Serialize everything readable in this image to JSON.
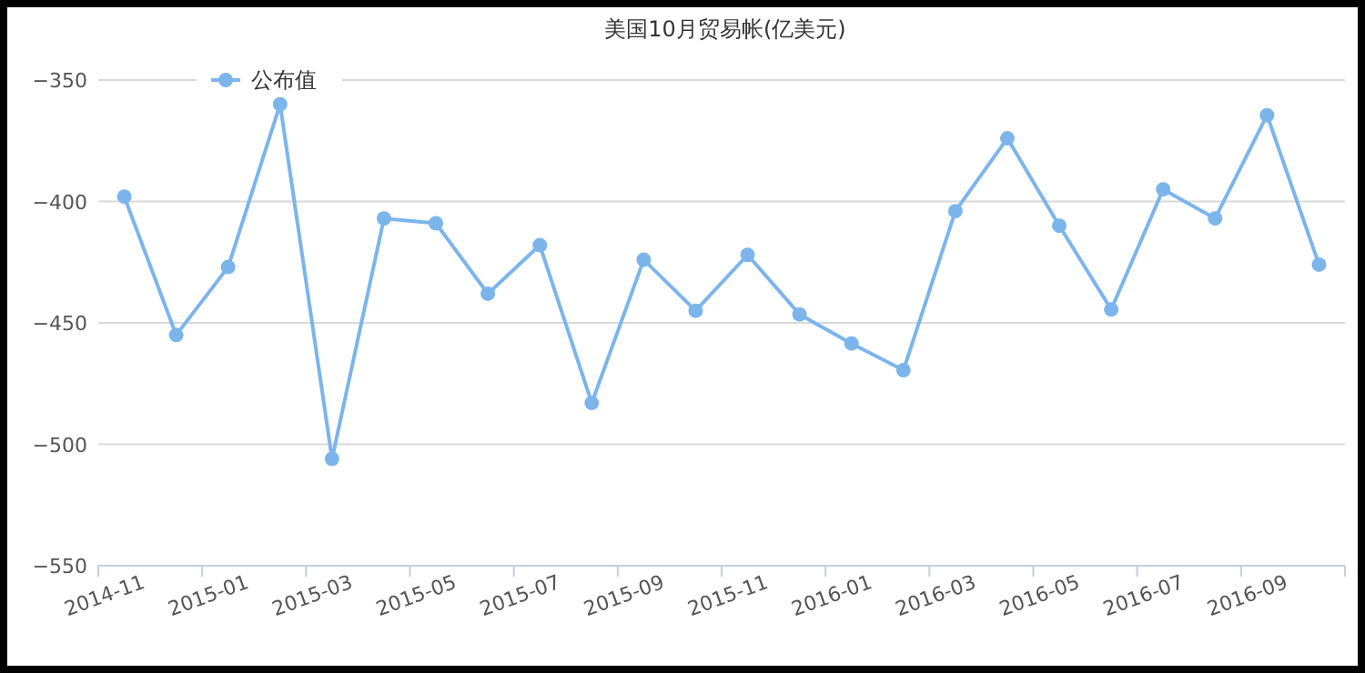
{
  "chart_data": {
    "type": "line",
    "title": "美国10月贸易帐(亿美元)",
    "categories": [
      "2014-11",
      null,
      "2015-01",
      null,
      "2015-03",
      null,
      "2015-05",
      null,
      "2015-07",
      null,
      "2015-09",
      null,
      "2015-11",
      null,
      "2016-01",
      null,
      "2016-03",
      null,
      "2016-05",
      null,
      "2016-07",
      null,
      "2016-09",
      null
    ],
    "series": [
      {
        "name": "公布值",
        "color": "#7cb5ec",
        "values": [
          -398,
          -455,
          -427,
          -360,
          -506,
          -407,
          -409,
          -438,
          -418,
          -483,
          -424,
          -445,
          -422,
          -446.5,
          -458.5,
          -469.5,
          -404,
          -374,
          -410,
          -444.5,
          -395,
          -407,
          -364.5,
          -426
        ]
      }
    ],
    "ylim": [
      -550,
      -350
    ],
    "yticks": [
      -550,
      -500,
      -450,
      -400,
      -350
    ],
    "grid": "y",
    "legend": "top left",
    "marker": "circle"
  }
}
